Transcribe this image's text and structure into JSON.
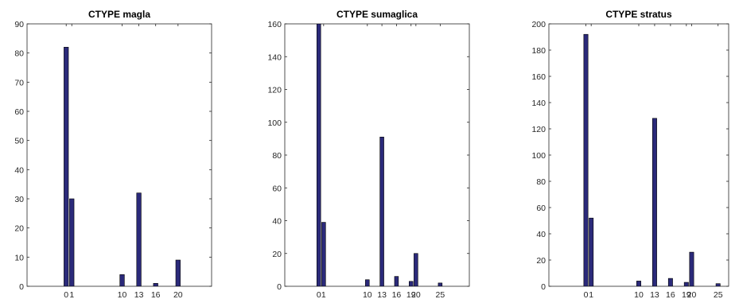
{
  "figure": {
    "background": "#ffffff",
    "bar_color": "#2b2a7a",
    "axis_color": "#262626"
  },
  "chart_data": [
    {
      "type": "bar",
      "title": "CTYPE magla",
      "xlabel": "",
      "ylabel": "",
      "xlim": [
        -7,
        26
      ],
      "ylim": [
        0,
        90
      ],
      "yticks": [
        0,
        10,
        20,
        30,
        40,
        50,
        60,
        70,
        80,
        90
      ],
      "xticks": [
        0,
        1,
        10,
        13,
        16,
        20
      ],
      "xticklabels": [
        "0",
        "1",
        "10",
        "13",
        "16",
        "20"
      ],
      "grid": false,
      "x": [
        0,
        1,
        10,
        13,
        16,
        20
      ],
      "values": [
        82,
        30,
        4,
        32,
        1,
        9
      ]
    },
    {
      "type": "bar",
      "title": "CTYPE sumaglica",
      "xlabel": "",
      "ylabel": "",
      "xlim": [
        -7,
        31
      ],
      "ylim": [
        0,
        160
      ],
      "yticks": [
        0,
        20,
        40,
        60,
        80,
        100,
        120,
        140,
        160
      ],
      "xticks": [
        0,
        1,
        10,
        13,
        16,
        19,
        20,
        25
      ],
      "xticklabels": [
        "0",
        "1",
        "10",
        "13",
        "16",
        "19",
        "20",
        "25"
      ],
      "grid": false,
      "x": [
        0,
        1,
        10,
        13,
        16,
        19,
        20,
        25
      ],
      "values": [
        160,
        39,
        4,
        91,
        6,
        3,
        20,
        2
      ]
    },
    {
      "type": "bar",
      "title": "CTYPE stratus",
      "xlabel": "",
      "ylabel": "",
      "xlim": [
        -7,
        27
      ],
      "ylim": [
        0,
        200
      ],
      "yticks": [
        0,
        20,
        40,
        60,
        80,
        100,
        120,
        140,
        160,
        180,
        200
      ],
      "xticks": [
        0,
        1,
        10,
        13,
        16,
        19,
        20,
        25
      ],
      "xticklabels": [
        "0",
        "1",
        "10",
        "13",
        "16",
        "19",
        "20",
        "25"
      ],
      "grid": false,
      "x": [
        0,
        1,
        10,
        13,
        16,
        19,
        20,
        25
      ],
      "values": [
        192,
        52,
        4,
        128,
        6,
        3,
        26,
        2
      ]
    }
  ]
}
